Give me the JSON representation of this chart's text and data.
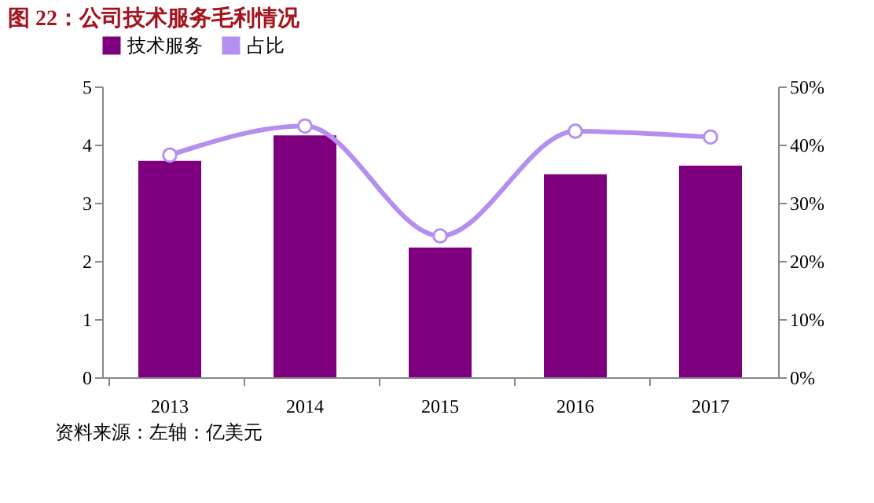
{
  "chart_data": {
    "type": "bar",
    "title": "图 22：公司技术服务毛利情况",
    "categories": [
      "2013",
      "2014",
      "2015",
      "2016",
      "2017"
    ],
    "series": [
      {
        "name": "技术服务",
        "color": "#7f007f",
        "values": [
          3.72,
          4.16,
          2.23,
          3.49,
          3.64
        ]
      },
      {
        "name": "占比",
        "type": "line",
        "axis": "y2",
        "color": "#b48ff0",
        "marker": "circle",
        "values": [
          38.2,
          43.2,
          24.3,
          42.3,
          41.3
        ]
      }
    ],
    "ylim": [
      0,
      5
    ],
    "yticks": [
      0,
      1,
      2,
      3,
      4,
      5
    ],
    "y2lim": [
      0,
      50
    ],
    "y2ticks": [
      {
        "value": 0,
        "label": "0%"
      },
      {
        "value": 10,
        "label": "10%"
      },
      {
        "value": 20,
        "label": "20%"
      },
      {
        "value": 30,
        "label": "30%"
      },
      {
        "value": 40,
        "label": "40%"
      },
      {
        "value": 50,
        "label": "50%"
      }
    ],
    "legend": "top",
    "grid": false,
    "annotations": [
      "资料来源：左轴：亿美元"
    ]
  }
}
